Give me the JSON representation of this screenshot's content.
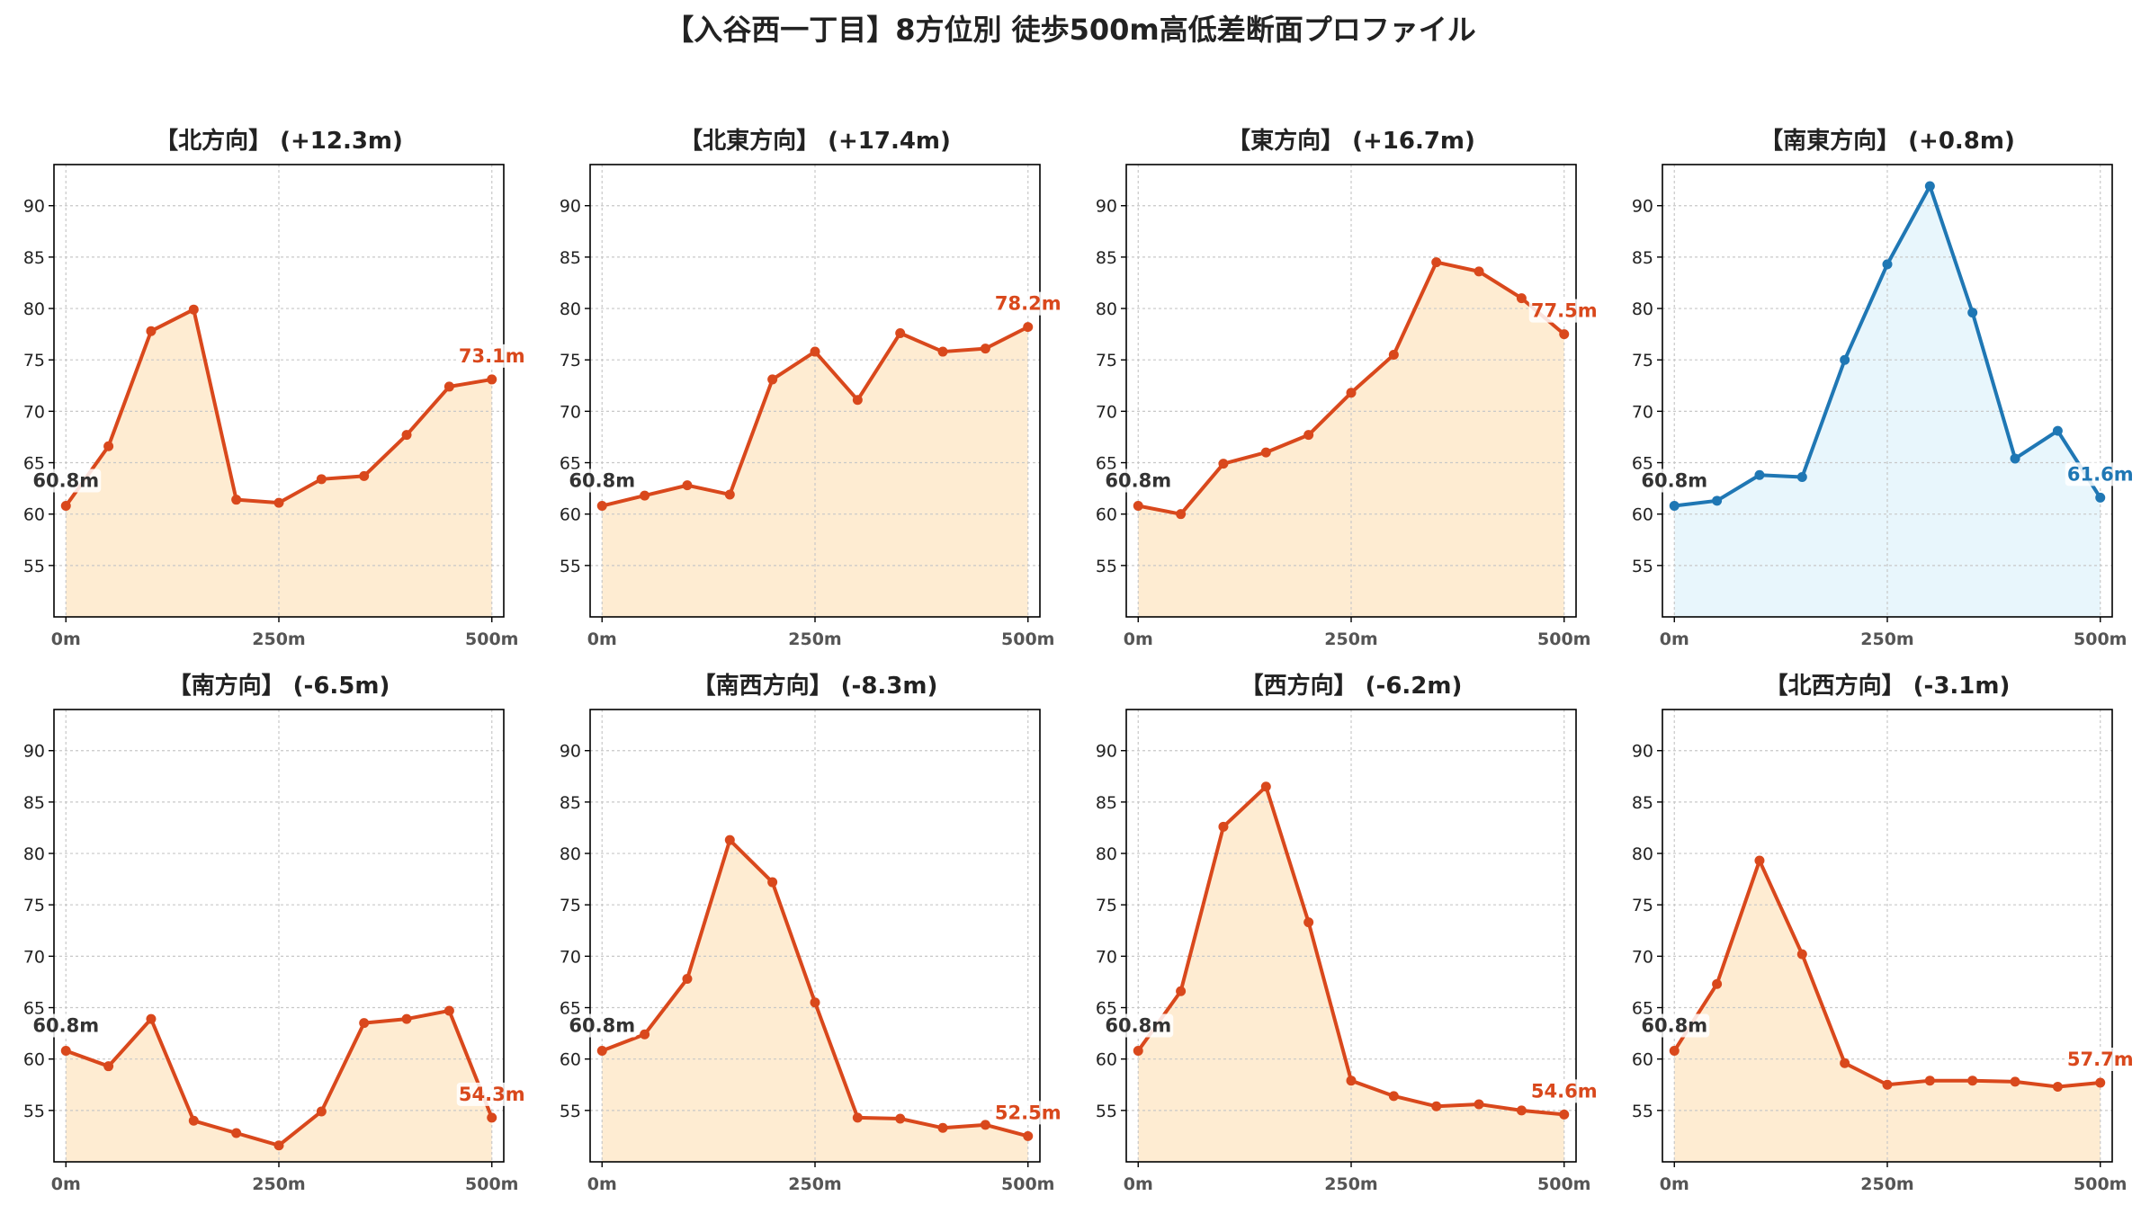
{
  "figure": {
    "title": "【入谷西一丁目】8方位別 徒歩500m高低差断面プロファイル"
  },
  "colors": {
    "up": "#d9481c",
    "up_fill": "#feecd2",
    "down": "#d9481c",
    "down_fill": "#feecd2",
    "flat": "#1f77b4",
    "flat_fill": "#e8f6fc",
    "start_text": "#333333",
    "grid": "#c8c8c8"
  },
  "chart_data": [
    {
      "type": "area",
      "title": "【北方向】 (+12.3m)",
      "x": [
        0,
        50,
        100,
        150,
        200,
        250,
        300,
        350,
        400,
        450,
        500
      ],
      "y": [
        60.8,
        66.6,
        77.8,
        79.9,
        61.4,
        61.1,
        63.4,
        63.7,
        67.7,
        72.4,
        73.1
      ],
      "start_label": "60.8m",
      "end_label": "73.1m",
      "tone": "up",
      "xlim": [
        -14,
        514
      ],
      "ylim": [
        50,
        94
      ],
      "yticks": [
        55,
        60,
        65,
        70,
        75,
        80,
        85,
        90
      ],
      "ytick_labels": [
        "55",
        "60",
        "65",
        "70",
        "75",
        "80",
        "85",
        "90"
      ],
      "xticks": [
        0,
        250,
        500
      ],
      "xtick_labels": [
        "0m",
        "250m",
        "500m"
      ],
      "grid": true
    },
    {
      "type": "area",
      "title": "【北東方向】 (+17.4m)",
      "x": [
        0,
        50,
        100,
        150,
        200,
        250,
        300,
        350,
        400,
        450,
        500
      ],
      "y": [
        60.8,
        61.8,
        62.8,
        61.9,
        73.1,
        75.8,
        71.1,
        77.6,
        75.8,
        76.1,
        78.2
      ],
      "start_label": "60.8m",
      "end_label": "78.2m",
      "tone": "up",
      "xlim": [
        -14,
        514
      ],
      "ylim": [
        50,
        94
      ],
      "yticks": [
        55,
        60,
        65,
        70,
        75,
        80,
        85,
        90
      ],
      "ytick_labels": [
        "55",
        "60",
        "65",
        "70",
        "75",
        "80",
        "85",
        "90"
      ],
      "xticks": [
        0,
        250,
        500
      ],
      "xtick_labels": [
        "0m",
        "250m",
        "500m"
      ],
      "grid": true
    },
    {
      "type": "area",
      "title": "【東方向】 (+16.7m)",
      "x": [
        0,
        50,
        100,
        150,
        200,
        250,
        300,
        350,
        400,
        450,
        500
      ],
      "y": [
        60.8,
        60.0,
        64.9,
        66.0,
        67.7,
        71.8,
        75.5,
        84.5,
        83.6,
        81.0,
        77.5
      ],
      "start_label": "60.8m",
      "end_label": "77.5m",
      "tone": "up",
      "xlim": [
        -14,
        514
      ],
      "ylim": [
        50,
        94
      ],
      "yticks": [
        55,
        60,
        65,
        70,
        75,
        80,
        85,
        90
      ],
      "ytick_labels": [
        "55",
        "60",
        "65",
        "70",
        "75",
        "80",
        "85",
        "90"
      ],
      "xticks": [
        0,
        250,
        500
      ],
      "xtick_labels": [
        "0m",
        "250m",
        "500m"
      ],
      "grid": true
    },
    {
      "type": "area",
      "title": "【南東方向】 (+0.8m)",
      "x": [
        0,
        50,
        100,
        150,
        200,
        250,
        300,
        350,
        400,
        450,
        500
      ],
      "y": [
        60.8,
        61.3,
        63.8,
        63.6,
        75.0,
        84.3,
        91.9,
        79.6,
        65.4,
        68.1,
        61.6
      ],
      "start_label": "60.8m",
      "end_label": "61.6m",
      "tone": "flat",
      "xlim": [
        -14,
        514
      ],
      "ylim": [
        50,
        94
      ],
      "yticks": [
        55,
        60,
        65,
        70,
        75,
        80,
        85,
        90
      ],
      "ytick_labels": [
        "55",
        "60",
        "65",
        "70",
        "75",
        "80",
        "85",
        "90"
      ],
      "xticks": [
        0,
        250,
        500
      ],
      "xtick_labels": [
        "0m",
        "250m",
        "500m"
      ],
      "grid": true
    },
    {
      "type": "area",
      "title": "【南方向】 (-6.5m)",
      "x": [
        0,
        50,
        100,
        150,
        200,
        250,
        300,
        350,
        400,
        450,
        500
      ],
      "y": [
        60.8,
        59.3,
        63.9,
        54.0,
        52.8,
        51.6,
        54.9,
        63.5,
        63.9,
        64.7,
        54.3
      ],
      "start_label": "60.8m",
      "end_label": "54.3m",
      "tone": "down",
      "xlim": [
        -14,
        514
      ],
      "ylim": [
        50,
        94
      ],
      "yticks": [
        55,
        60,
        65,
        70,
        75,
        80,
        85,
        90
      ],
      "ytick_labels": [
        "55",
        "60",
        "65",
        "70",
        "75",
        "80",
        "85",
        "90"
      ],
      "xticks": [
        0,
        250,
        500
      ],
      "xtick_labels": [
        "0m",
        "250m",
        "500m"
      ],
      "grid": true
    },
    {
      "type": "area",
      "title": "【南西方向】 (-8.3m)",
      "x": [
        0,
        50,
        100,
        150,
        200,
        250,
        300,
        350,
        400,
        450,
        500
      ],
      "y": [
        60.8,
        62.4,
        67.8,
        81.3,
        77.2,
        65.5,
        54.3,
        54.2,
        53.3,
        53.6,
        52.5
      ],
      "start_label": "60.8m",
      "end_label": "52.5m",
      "tone": "down",
      "xlim": [
        -14,
        514
      ],
      "ylim": [
        50,
        94
      ],
      "yticks": [
        55,
        60,
        65,
        70,
        75,
        80,
        85,
        90
      ],
      "ytick_labels": [
        "55",
        "60",
        "65",
        "70",
        "75",
        "80",
        "85",
        "90"
      ],
      "xticks": [
        0,
        250,
        500
      ],
      "xtick_labels": [
        "0m",
        "250m",
        "500m"
      ],
      "grid": true
    },
    {
      "type": "area",
      "title": "【西方向】 (-6.2m)",
      "x": [
        0,
        50,
        100,
        150,
        200,
        250,
        300,
        350,
        400,
        450,
        500
      ],
      "y": [
        60.8,
        66.6,
        82.6,
        86.5,
        73.3,
        57.9,
        56.4,
        55.4,
        55.6,
        55.0,
        54.6
      ],
      "start_label": "60.8m",
      "end_label": "54.6m",
      "tone": "down",
      "xlim": [
        -14,
        514
      ],
      "ylim": [
        50,
        94
      ],
      "yticks": [
        55,
        60,
        65,
        70,
        75,
        80,
        85,
        90
      ],
      "ytick_labels": [
        "55",
        "60",
        "65",
        "70",
        "75",
        "80",
        "85",
        "90"
      ],
      "xticks": [
        0,
        250,
        500
      ],
      "xtick_labels": [
        "0m",
        "250m",
        "500m"
      ],
      "grid": true
    },
    {
      "type": "area",
      "title": "【北西方向】 (-3.1m)",
      "x": [
        0,
        50,
        100,
        150,
        200,
        250,
        300,
        350,
        400,
        450,
        500
      ],
      "y": [
        60.8,
        67.3,
        79.3,
        70.2,
        59.6,
        57.5,
        57.9,
        57.9,
        57.8,
        57.3,
        57.7
      ],
      "start_label": "60.8m",
      "end_label": "57.7m",
      "tone": "down",
      "xlim": [
        -14,
        514
      ],
      "ylim": [
        50,
        94
      ],
      "yticks": [
        55,
        60,
        65,
        70,
        75,
        80,
        85,
        90
      ],
      "ytick_labels": [
        "55",
        "60",
        "65",
        "70",
        "75",
        "80",
        "85",
        "90"
      ],
      "xticks": [
        0,
        250,
        500
      ],
      "xtick_labels": [
        "0m",
        "250m",
        "500m"
      ],
      "grid": true
    }
  ]
}
